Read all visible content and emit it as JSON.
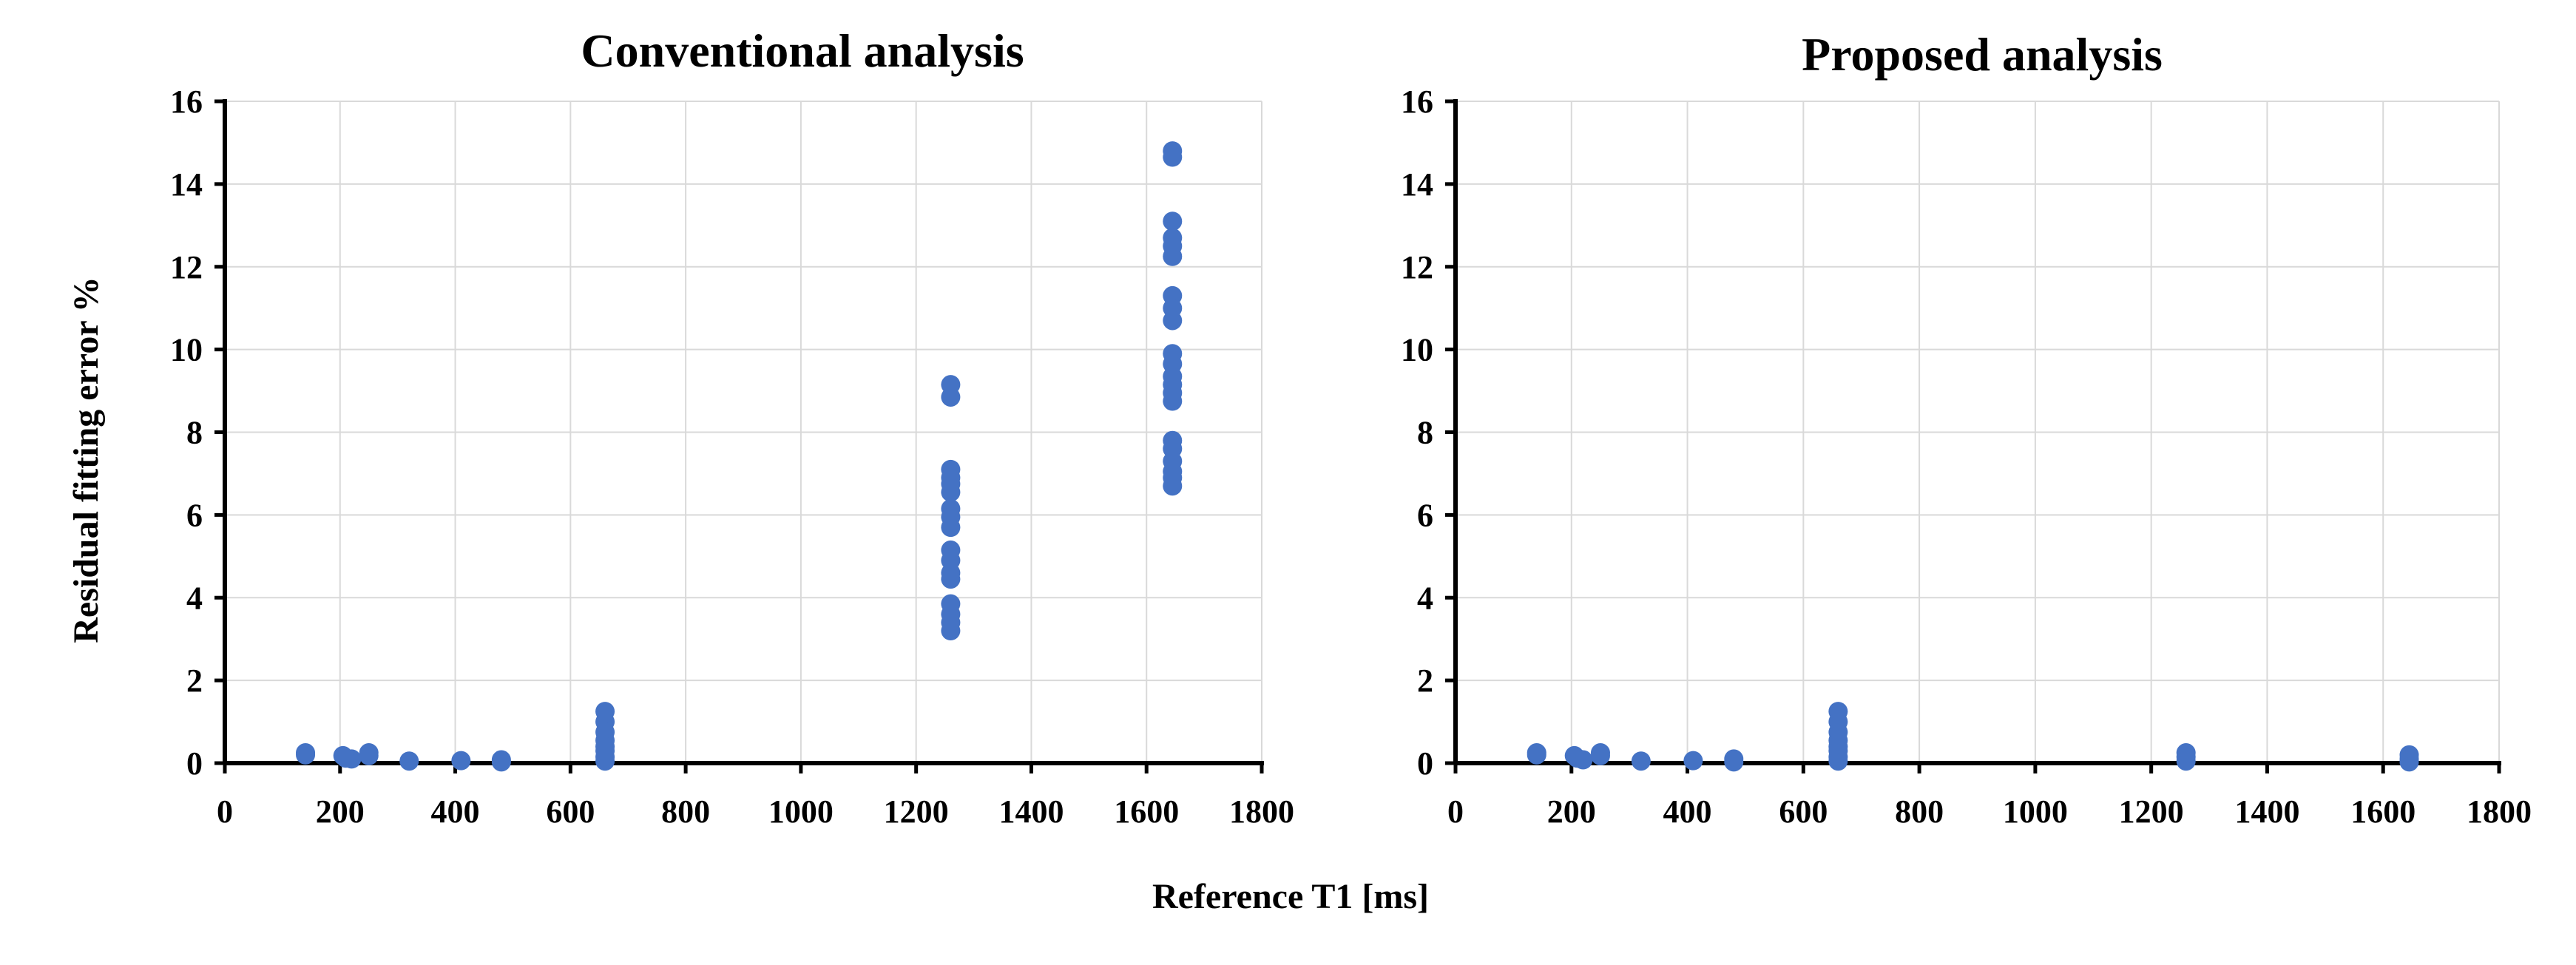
{
  "colors": {
    "marker": "#4472c4",
    "axis": "#000000",
    "grid": "#d9d9d9",
    "background": "#ffffff"
  },
  "figure": {
    "shared_xlabel": "Reference T1 [ms]",
    "shared_ylabel": "Residual fitting error %"
  },
  "chart_data": [
    {
      "type": "scatter",
      "title": "Conventional analysis",
      "xlabel": "Reference T1 [ms]",
      "ylabel": "Residual fitting error %",
      "xlim": [
        0,
        1800
      ],
      "ylim": [
        0,
        16
      ],
      "xticks": [
        "0",
        "200",
        "400",
        "600",
        "800",
        "1000",
        "1200",
        "1400",
        "1600",
        "1800"
      ],
      "yticks": [
        "0",
        "2",
        "4",
        "6",
        "8",
        "10",
        "12",
        "14",
        "16"
      ],
      "grid": true,
      "legend": "none",
      "series": [
        {
          "points": [
            [
              140,
              0.25
            ],
            [
              140,
              0.2
            ],
            [
              205,
              0.18
            ],
            [
              210,
              0.12
            ],
            [
              220,
              0.1
            ],
            [
              250,
              0.25
            ],
            [
              250,
              0.18
            ],
            [
              320,
              0.05
            ],
            [
              410,
              0.06
            ],
            [
              480,
              0.08
            ],
            [
              480,
              0.03
            ],
            [
              660,
              1.25
            ],
            [
              660,
              1.0
            ],
            [
              660,
              0.75
            ],
            [
              660,
              0.55
            ],
            [
              660,
              0.4
            ],
            [
              660,
              0.3
            ],
            [
              660,
              0.15
            ],
            [
              660,
              0.05
            ],
            [
              1260,
              9.15
            ],
            [
              1260,
              8.85
            ],
            [
              1260,
              7.1
            ],
            [
              1260,
              6.9
            ],
            [
              1260,
              6.75
            ],
            [
              1260,
              6.55
            ],
            [
              1260,
              6.15
            ],
            [
              1260,
              5.95
            ],
            [
              1260,
              5.7
            ],
            [
              1260,
              5.15
            ],
            [
              1260,
              4.9
            ],
            [
              1260,
              4.6
            ],
            [
              1260,
              4.45
            ],
            [
              1260,
              3.85
            ],
            [
              1260,
              3.6
            ],
            [
              1260,
              3.4
            ],
            [
              1260,
              3.2
            ],
            [
              1645,
              14.8
            ],
            [
              1645,
              14.65
            ],
            [
              1645,
              13.1
            ],
            [
              1645,
              12.7
            ],
            [
              1645,
              12.5
            ],
            [
              1645,
              12.25
            ],
            [
              1645,
              11.3
            ],
            [
              1645,
              11.0
            ],
            [
              1645,
              10.7
            ],
            [
              1645,
              9.9
            ],
            [
              1645,
              9.65
            ],
            [
              1645,
              9.35
            ],
            [
              1645,
              9.15
            ],
            [
              1645,
              8.95
            ],
            [
              1645,
              8.75
            ],
            [
              1645,
              7.8
            ],
            [
              1645,
              7.6
            ],
            [
              1645,
              7.3
            ],
            [
              1645,
              7.05
            ],
            [
              1645,
              6.9
            ],
            [
              1645,
              6.7
            ]
          ]
        }
      ]
    },
    {
      "type": "scatter",
      "title": "Proposed analysis",
      "xlim": [
        0,
        1800
      ],
      "ylim": [
        0,
        16
      ],
      "xticks": [
        "0",
        "200",
        "400",
        "600",
        "800",
        "1000",
        "1200",
        "1400",
        "1600",
        "1800"
      ],
      "yticks": [
        "0",
        "2",
        "4",
        "6",
        "8",
        "10",
        "12",
        "14",
        "16"
      ],
      "grid": true,
      "legend": "none",
      "series": [
        {
          "points": [
            [
              140,
              0.25
            ],
            [
              140,
              0.2
            ],
            [
              205,
              0.18
            ],
            [
              210,
              0.12
            ],
            [
              220,
              0.08
            ],
            [
              250,
              0.25
            ],
            [
              250,
              0.18
            ],
            [
              320,
              0.05
            ],
            [
              410,
              0.06
            ],
            [
              480,
              0.1
            ],
            [
              480,
              0.03
            ],
            [
              660,
              1.25
            ],
            [
              660,
              1.0
            ],
            [
              660,
              0.75
            ],
            [
              660,
              0.55
            ],
            [
              660,
              0.4
            ],
            [
              660,
              0.3
            ],
            [
              660,
              0.15
            ],
            [
              660,
              0.05
            ],
            [
              1260,
              0.25
            ],
            [
              1260,
              0.15
            ],
            [
              1260,
              0.05
            ],
            [
              1645,
              0.2
            ],
            [
              1645,
              0.1
            ],
            [
              1645,
              0.03
            ]
          ]
        }
      ]
    }
  ]
}
